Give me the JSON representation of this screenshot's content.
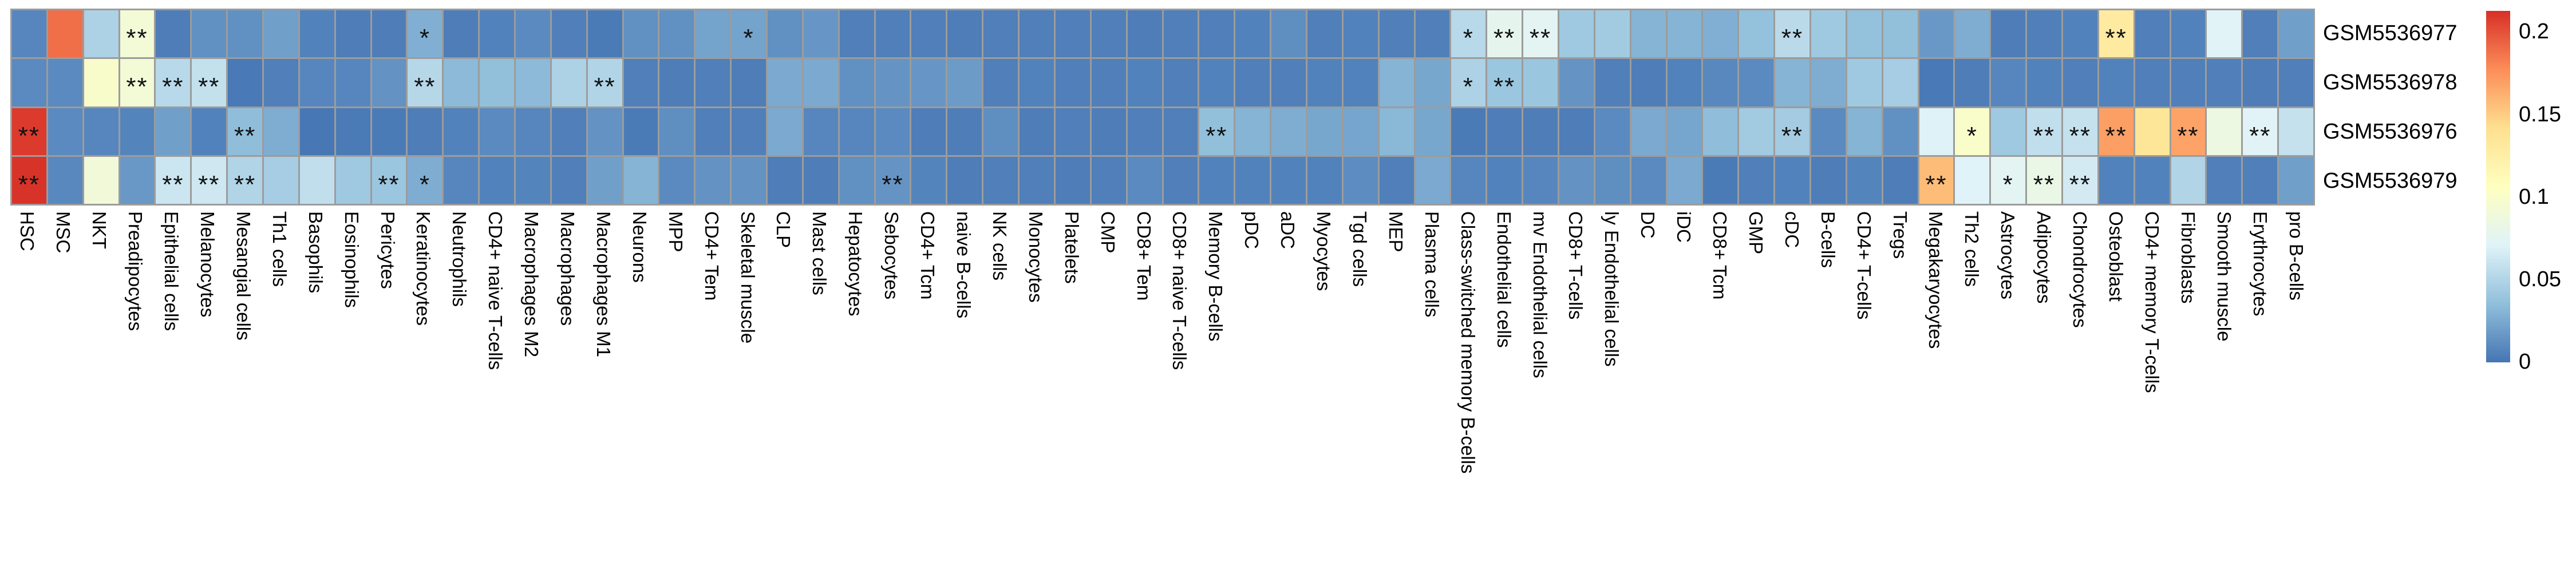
{
  "chart_data": {
    "type": "heatmap",
    "title": "",
    "xlabel": "",
    "ylabel": "",
    "rows": [
      "GSM5536977",
      "GSM5536978",
      "GSM5536976",
      "GSM5536979"
    ],
    "columns": [
      "HSC",
      "MSC",
      "NKT",
      "Preadipocytes",
      "Epithelial cells",
      "Melanocytes",
      "Mesangial cells",
      "Th1 cells",
      "Basophils",
      "Eosinophils",
      "Pericytes",
      "Keratinocytes",
      "Neutrophils",
      "CD4+ naive T-cells",
      "Macrophages M2",
      "Macrophages",
      "Macrophages M1",
      "Neurons",
      "MPP",
      "CD4+ Tem",
      "Skeletal muscle",
      "CLP",
      "Mast cells",
      "Hepatocytes",
      "Sebocytes",
      "CD4+ Tcm",
      "naive B-cells",
      "NK cells",
      "Monocytes",
      "Platelets",
      "CMP",
      "CD8+ Tem",
      "CD8+ naive T-cells",
      "Memory B-cells",
      "pDC",
      "aDC",
      "Myocytes",
      "Tgd cells",
      "MEP",
      "Plasma cells",
      "Class-switched memory B-cells",
      "Endothelial cells",
      "mv Endothelial cells",
      "CD8+ T-cells",
      "ly Endothelial cells",
      "DC",
      "iDC",
      "CD8+ Tcm",
      "GMP",
      "cDC",
      "B-cells",
      "CD4+ T-cells",
      "Tregs",
      "Megakaryocytes",
      "Th2 cells",
      "Astrocytes",
      "Adipocytes",
      "Chondrocytes",
      "Osteoblast",
      "CD4+ memory T-cells",
      "Fibroblasts",
      "Smooth muscle",
      "Erythrocytes",
      "pro B-cells"
    ],
    "value_max": 0.213,
    "values": [
      [
        0.008,
        0.189,
        0.048,
        0.092,
        0.004,
        0.013,
        0.013,
        0.02,
        0.006,
        0.004,
        0.004,
        0.028,
        0.004,
        0.006,
        0.01,
        0.005,
        0.003,
        0.013,
        0.013,
        0.022,
        0.022,
        0.013,
        0.016,
        0.005,
        0.005,
        0.005,
        0.004,
        0.005,
        0.005,
        0.005,
        0.005,
        0.004,
        0.005,
        0.005,
        0.006,
        0.012,
        0.005,
        0.006,
        0.005,
        0.005,
        0.053,
        0.077,
        0.075,
        0.042,
        0.043,
        0.03,
        0.03,
        0.028,
        0.037,
        0.054,
        0.042,
        0.037,
        0.036,
        0.017,
        0.027,
        0.004,
        0.005,
        0.006,
        0.13,
        0.005,
        0.006,
        0.072,
        0.005,
        0.02
      ],
      [
        0.01,
        0.01,
        0.099,
        0.092,
        0.053,
        0.058,
        0.002,
        0.005,
        0.008,
        0.008,
        0.014,
        0.052,
        0.033,
        0.036,
        0.033,
        0.048,
        0.05,
        0.005,
        0.004,
        0.005,
        0.004,
        0.025,
        0.025,
        0.013,
        0.015,
        0.016,
        0.018,
        0.005,
        0.006,
        0.005,
        0.005,
        0.006,
        0.005,
        0.006,
        0.005,
        0.005,
        0.006,
        0.006,
        0.03,
        0.024,
        0.048,
        0.04,
        0.04,
        0.015,
        0.005,
        0.004,
        0.006,
        0.009,
        0.01,
        0.03,
        0.027,
        0.042,
        0.045,
        0.002,
        0.004,
        0.008,
        0.006,
        0.005,
        0.006,
        0.005,
        0.005,
        0.005,
        0.004,
        0.005
      ],
      [
        0.209,
        0.01,
        0.008,
        0.007,
        0.02,
        0.006,
        0.035,
        0.027,
        0.001,
        0.003,
        0.003,
        0.004,
        0.006,
        0.01,
        0.008,
        0.005,
        0.014,
        0.003,
        0.012,
        0.005,
        0.005,
        0.025,
        0.008,
        0.008,
        0.01,
        0.004,
        0.004,
        0.012,
        0.004,
        0.005,
        0.004,
        0.005,
        0.005,
        0.036,
        0.03,
        0.027,
        0.024,
        0.023,
        0.032,
        0.024,
        0.003,
        0.004,
        0.004,
        0.004,
        0.01,
        0.025,
        0.023,
        0.035,
        0.043,
        0.044,
        0.01,
        0.03,
        0.013,
        0.07,
        0.1,
        0.042,
        0.057,
        0.059,
        0.17,
        0.135,
        0.168,
        0.085,
        0.072,
        0.059
      ],
      [
        0.212,
        0.009,
        0.09,
        0.017,
        0.062,
        0.063,
        0.05,
        0.045,
        0.057,
        0.042,
        0.04,
        0.027,
        0.008,
        0.006,
        0.007,
        0.005,
        0.02,
        0.03,
        0.01,
        0.014,
        0.014,
        0.004,
        0.004,
        0.013,
        0.015,
        0.007,
        0.004,
        0.005,
        0.005,
        0.004,
        0.005,
        0.01,
        0.005,
        0.006,
        0.006,
        0.006,
        0.006,
        0.011,
        0.005,
        0.025,
        0.008,
        0.006,
        0.008,
        0.014,
        0.012,
        0.01,
        0.025,
        0.003,
        0.005,
        0.006,
        0.004,
        0.007,
        0.004,
        0.157,
        0.071,
        0.075,
        0.082,
        0.065,
        0.006,
        0.006,
        0.05,
        0.005,
        0.005,
        0.02
      ]
    ],
    "annotations": [
      [
        "",
        "",
        "",
        "**",
        "",
        "",
        "",
        "",
        "",
        "",
        "",
        "*",
        "",
        "",
        "",
        "",
        "",
        "",
        "",
        "",
        "*",
        "",
        "",
        "",
        "",
        "",
        "",
        "",
        "",
        "",
        "",
        "",
        "",
        "",
        "",
        "",
        "",
        "",
        "",
        "",
        "*",
        "**",
        "**",
        "",
        "",
        "",
        "",
        "",
        "",
        "**",
        "",
        "",
        "",
        "",
        "",
        "",
        "",
        "",
        "**",
        "",
        "",
        "",
        "",
        ""
      ],
      [
        "",
        "",
        "",
        "**",
        "**",
        "**",
        "",
        "",
        "",
        "",
        "",
        "**",
        "",
        "",
        "",
        "",
        "**",
        "",
        "",
        "",
        "",
        "",
        "",
        "",
        "",
        "",
        "",
        "",
        "",
        "",
        "",
        "",
        "",
        "",
        "",
        "",
        "",
        "",
        "",
        "",
        "*",
        "**",
        "",
        "",
        "",
        "",
        "",
        "",
        "",
        "",
        "",
        "",
        "",
        "",
        "",
        "",
        "",
        "",
        "",
        "",
        "",
        "",
        "",
        ""
      ],
      [
        "**",
        "",
        "",
        "",
        "",
        "",
        "**",
        "",
        "",
        "",
        "",
        "",
        "",
        "",
        "",
        "",
        "",
        "",
        "",
        "",
        "",
        "",
        "",
        "",
        "",
        "",
        "",
        "",
        "",
        "",
        "",
        "",
        "",
        "**",
        "",
        "",
        "",
        "",
        "",
        "",
        "",
        "",
        "",
        "",
        "",
        "",
        "",
        "",
        "",
        "**",
        "",
        "",
        "",
        "",
        "*",
        "",
        "**",
        "**",
        "**",
        "",
        "**",
        "",
        "**",
        ""
      ],
      [
        "**",
        "",
        "",
        "",
        "**",
        "**",
        "**",
        "",
        "",
        "",
        "**",
        "*",
        "",
        "",
        "",
        "",
        "",
        "",
        "",
        "",
        "",
        "",
        "",
        "",
        "**",
        "",
        "",
        "",
        "",
        "",
        "",
        "",
        "",
        "",
        "",
        "",
        "",
        "",
        "",
        "",
        "",
        "",
        "",
        "",
        "",
        "",
        "",
        "",
        "",
        "",
        "",
        "",
        "",
        "**",
        "",
        "*",
        "**",
        "**",
        "",
        "",
        "",
        "",
        "",
        ""
      ]
    ],
    "colormap": [
      "#4575B4",
      "#91BFDB",
      "#E0F3F8",
      "#FFFFBF",
      "#FEE090",
      "#FC8D59",
      "#D73027"
    ],
    "grid_line_color": "#9c9c9c",
    "legend_position": "right",
    "colorbar_ticks": [
      {
        "label": "0.2",
        "value": 0.2
      },
      {
        "label": "0.15",
        "value": 0.15
      },
      {
        "label": "0.1",
        "value": 0.1
      },
      {
        "label": "0.05",
        "value": 0.05
      },
      {
        "label": "0",
        "value": 0
      }
    ]
  },
  "layout_numbers": {
    "n_rows": 4,
    "n_columns": 64
  }
}
